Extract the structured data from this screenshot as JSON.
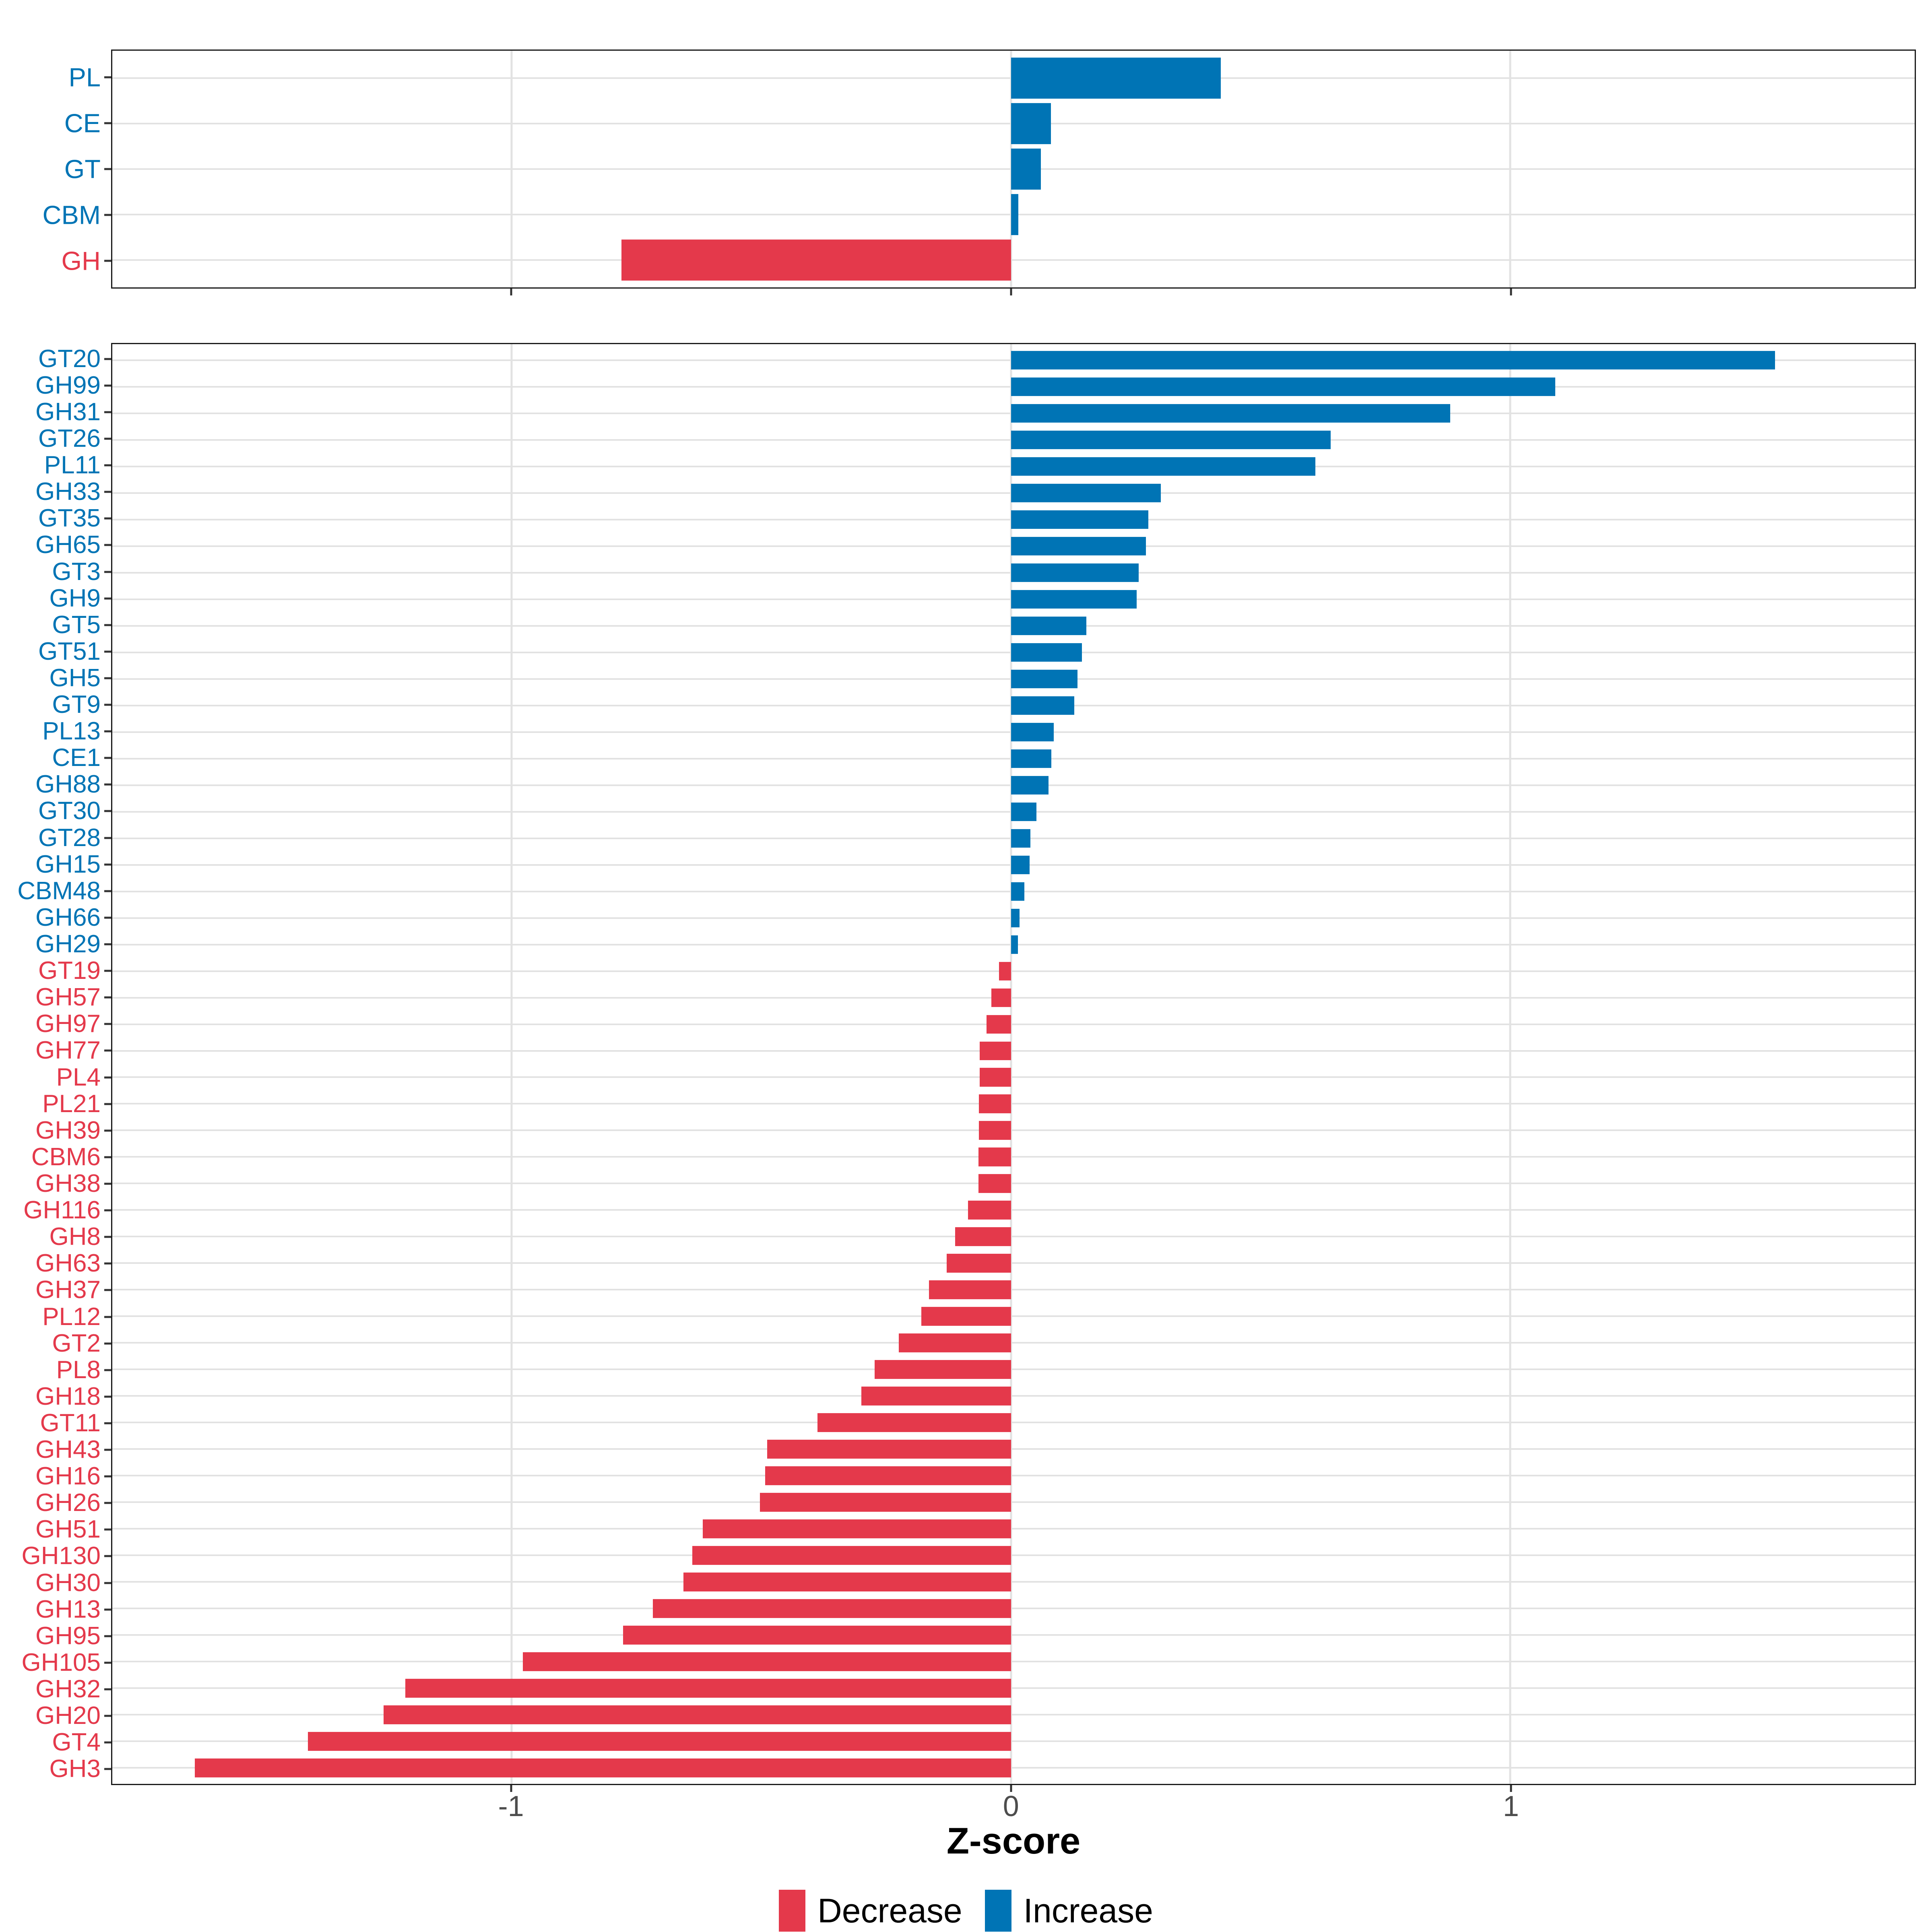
{
  "figure": {
    "xlabel": "Z-score",
    "x_ticks": [
      "-1",
      "0",
      "1"
    ],
    "colors": {
      "increase": "#0074B5",
      "decrease": "#E4394B",
      "gridline": "#E2E2E2",
      "panel_border": "#1A1A1A",
      "tick_mark": "#333333",
      "axis_text": "#4D4D4D",
      "axis_title": "#000000",
      "background": "#FFFFFF"
    },
    "legend": {
      "items": [
        {
          "label": "Decrease",
          "color": "#E4394B"
        },
        {
          "label": "Increase",
          "color": "#0074B5"
        }
      ]
    }
  },
  "chart_data": [
    {
      "id": "cazyme-class",
      "type": "bar",
      "orientation": "horizontal",
      "title": "",
      "xlabel": "Z-score",
      "xlim": [
        -1.8,
        1.81
      ],
      "xticks": [
        -1,
        0,
        1
      ],
      "grid": true,
      "legend_position": "bottom",
      "categories": [
        "PL",
        "CE",
        "GT",
        "CBM",
        "GH"
      ],
      "values": [
        0.42,
        0.08,
        0.06,
        0.015,
        -0.78
      ]
    },
    {
      "id": "cazyme-family",
      "type": "bar",
      "orientation": "horizontal",
      "title": "",
      "xlabel": "Z-score",
      "xlim": [
        -1.8,
        1.81
      ],
      "xticks": [
        -1,
        0,
        1
      ],
      "grid": true,
      "legend_position": "bottom",
      "categories": [
        "GT20",
        "GH99",
        "GH31",
        "GT26",
        "PL11",
        "GH33",
        "GT35",
        "GH65",
        "GT3",
        "GH9",
        "GT5",
        "GT51",
        "GH5",
        "GT9",
        "PL13",
        "CE1",
        "GH88",
        "GT30",
        "GT28",
        "GH15",
        "CBM48",
        "GH66",
        "GH29",
        "GT19",
        "GH57",
        "GH97",
        "GH77",
        "PL4",
        "PL21",
        "GH39",
        "CBM6",
        "GH38",
        "GH116",
        "GH8",
        "GH63",
        "GH37",
        "PL12",
        "GT2",
        "PL8",
        "GH18",
        "GT11",
        "GH43",
        "GH16",
        "GH26",
        "GH51",
        "GH130",
        "GH30",
        "GH13",
        "GH95",
        "GH105",
        "GH32",
        "GH20",
        "GT4",
        "GH3"
      ],
      "values": [
        1.53,
        1.09,
        0.88,
        0.64,
        0.61,
        0.3,
        0.275,
        0.27,
        0.256,
        0.252,
        0.151,
        0.142,
        0.133,
        0.127,
        0.086,
        0.081,
        0.075,
        0.051,
        0.039,
        0.037,
        0.027,
        0.017,
        0.014,
        -0.024,
        -0.039,
        -0.049,
        -0.063,
        -0.063,
        -0.064,
        -0.064,
        -0.065,
        -0.065,
        -0.086,
        -0.112,
        -0.129,
        -0.164,
        -0.18,
        -0.225,
        -0.273,
        -0.3,
        -0.388,
        -0.488,
        -0.492,
        -0.503,
        -0.617,
        -0.638,
        -0.656,
        -0.717,
        -0.777,
        -0.978,
        -1.213,
        -1.257,
        -1.408,
        -1.635
      ]
    }
  ]
}
